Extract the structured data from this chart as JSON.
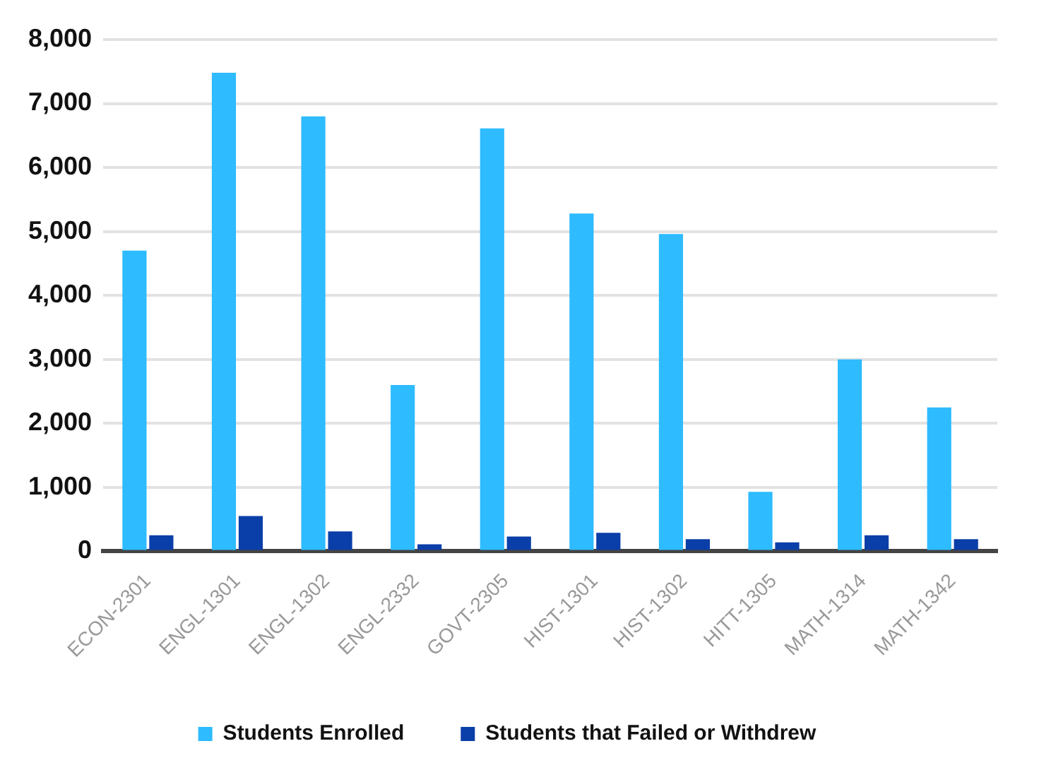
{
  "chart_data": {
    "type": "bar",
    "categories": [
      "ECON-2301",
      "ENGL-1301",
      "ENGL-1302",
      "ENGL-2332",
      "GOVT-2305",
      "HIST-1301",
      "HIST-1302",
      "HITT-1305",
      "MATH-1314",
      "MATH-1342"
    ],
    "series": [
      {
        "name": "Students Enrolled",
        "color": "#2ebbff",
        "values": [
          4700,
          7480,
          6800,
          2600,
          6610,
          5280,
          4960,
          930,
          3000,
          2250
        ]
      },
      {
        "name": "Students that Failed or Withdrew",
        "color": "#0a3ea8",
        "values": [
          250,
          550,
          310,
          110,
          230,
          290,
          190,
          140,
          250,
          190
        ]
      }
    ],
    "ylim": [
      0,
      8000
    ],
    "yticks": [
      0,
      {
        "value": 1000,
        "label": "1,000"
      },
      {
        "value": 2000,
        "label": "2,000"
      },
      {
        "value": 3000,
        "label": "3,000"
      },
      {
        "value": 4000,
        "label": "4,000"
      },
      {
        "value": 5000,
        "label": "5,000"
      },
      {
        "value": 6000,
        "label": "6,000"
      },
      {
        "value": 7000,
        "label": "7,000"
      },
      {
        "value": 8000,
        "label": "8,000"
      }
    ],
    "grid": "y",
    "legend": "bottom"
  }
}
